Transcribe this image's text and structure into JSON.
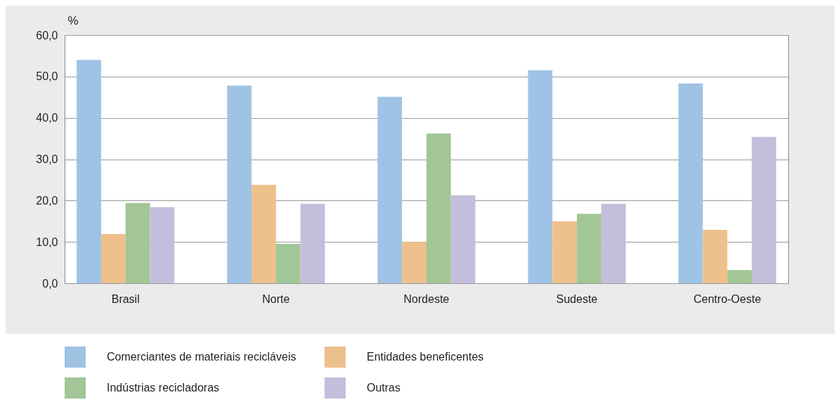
{
  "chart_data": {
    "type": "bar",
    "ylabel": "%",
    "categories": [
      "Brasil",
      "Norte",
      "Nordeste",
      "Sudeste",
      "Centro-Oeste"
    ],
    "series": [
      {
        "name": "Comerciantes de materiais recicláveis",
        "color": "#9fc3e5",
        "values": [
          54.0,
          47.8,
          45.1,
          51.5,
          48.3
        ]
      },
      {
        "name": "Entidades beneficentes",
        "color": "#eec08c",
        "values": [
          11.9,
          23.8,
          10.0,
          15.0,
          12.9
        ]
      },
      {
        "name": "Indústrias recicladoras",
        "color": "#a2c696",
        "values": [
          19.4,
          9.5,
          36.2,
          16.8,
          3.2
        ]
      },
      {
        "name": "Outras",
        "color": "#c4bedc",
        "values": [
          18.4,
          19.2,
          21.3,
          19.2,
          35.4
        ]
      }
    ],
    "ylim": [
      0,
      60
    ],
    "yticks": [
      {
        "value": 0,
        "label": "0,0"
      },
      {
        "value": 10,
        "label": "10,0"
      },
      {
        "value": 20,
        "label": "20,0"
      },
      {
        "value": 30,
        "label": "30,0"
      },
      {
        "value": 40,
        "label": "40,0"
      },
      {
        "value": 50,
        "label": "50,0"
      },
      {
        "value": 60,
        "label": "60,0"
      }
    ],
    "grid": "y",
    "legend": "bottom"
  }
}
